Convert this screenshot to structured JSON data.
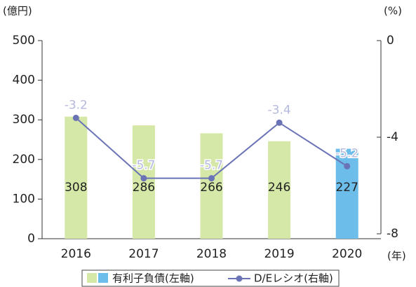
{
  "chart_data": {
    "type": "bar_line",
    "y_unit": "(億円)",
    "y2_unit": "(%)",
    "x_unit": "(年)",
    "categories": [
      "2016",
      "2017",
      "2018",
      "2019",
      "2020"
    ],
    "series": [
      {
        "name": "有利子負債(左軸)",
        "type": "bar",
        "axis": "y",
        "colors": [
          "#d5e8a8",
          "#d5e8a8",
          "#d5e8a8",
          "#d5e8a8",
          "#6cbde9"
        ],
        "values": [
          308,
          286,
          266,
          246,
          227
        ]
      },
      {
        "name": "D/Eレシオ(右軸)",
        "type": "line",
        "axis": "y2",
        "color": "#6a73b6",
        "label_color": "#b4b9de",
        "values": [
          -3.2,
          -5.7,
          -5.7,
          -3.4,
          -5.2
        ]
      }
    ],
    "ylim": [
      0,
      500
    ],
    "yticks": [
      0,
      100,
      200,
      300,
      400,
      500
    ],
    "y2lim": [
      -8,
      0
    ],
    "y2ticks": [
      0,
      -4,
      -8
    ]
  }
}
